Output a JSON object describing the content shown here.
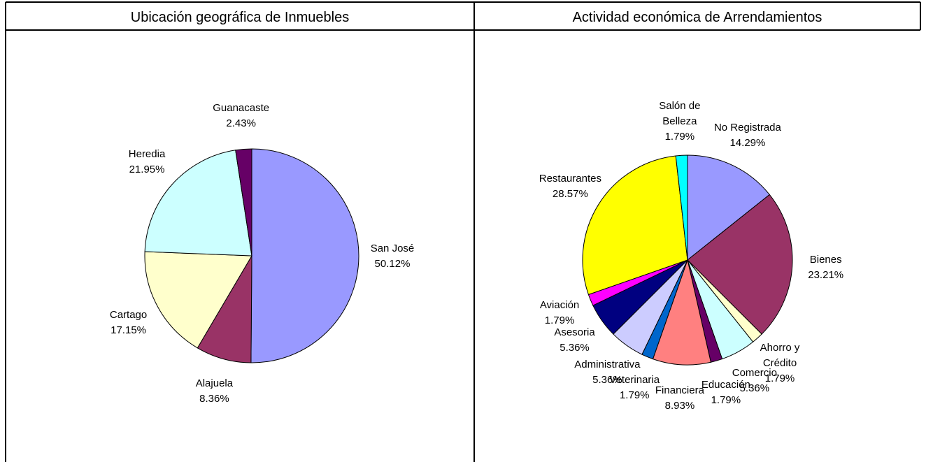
{
  "chart_data": [
    {
      "type": "pie",
      "title": "Ubicación geográfica de Inmuebles",
      "categories": [
        "San José",
        "Alajuela",
        "Cartago",
        "Heredia",
        "Guanacaste"
      ],
      "values": [
        50.12,
        8.36,
        17.15,
        21.95,
        2.43
      ],
      "value_labels": [
        "50.12%",
        "8.36%",
        "17.15%",
        "21.95%",
        "2.43%"
      ],
      "colors": [
        "#9999ff",
        "#993366",
        "#ffffcc",
        "#ccffff",
        "#660066"
      ]
    },
    {
      "type": "pie",
      "title": "Actividad económica de Arrendamientos",
      "categories": [
        "No Registrada",
        "Bienes",
        "Ahorro y Crédito",
        "Comercio",
        "Educación",
        "Financiera",
        "Veterinaria",
        "Administrativa",
        "Asesoria",
        "Aviación",
        "Restaurantes",
        "Salón de Belleza"
      ],
      "values": [
        14.29,
        23.21,
        1.79,
        5.36,
        1.79,
        8.93,
        1.79,
        5.36,
        5.36,
        1.79,
        28.57,
        1.79
      ],
      "value_labels": [
        "14.29%",
        "23.21%",
        "1.79%",
        "5.36%",
        "1.79%",
        "8.93%",
        "1.79%",
        "5.36%",
        "5.36%",
        "1.79%",
        "28.57%",
        "1.79%"
      ],
      "colors": [
        "#9999ff",
        "#993366",
        "#ffffcc",
        "#ccffff",
        "#660066",
        "#ff8080",
        "#0066cc",
        "#ccccff",
        "#000080",
        "#ff00ff",
        "#ffff00",
        "#00ffff"
      ]
    }
  ]
}
